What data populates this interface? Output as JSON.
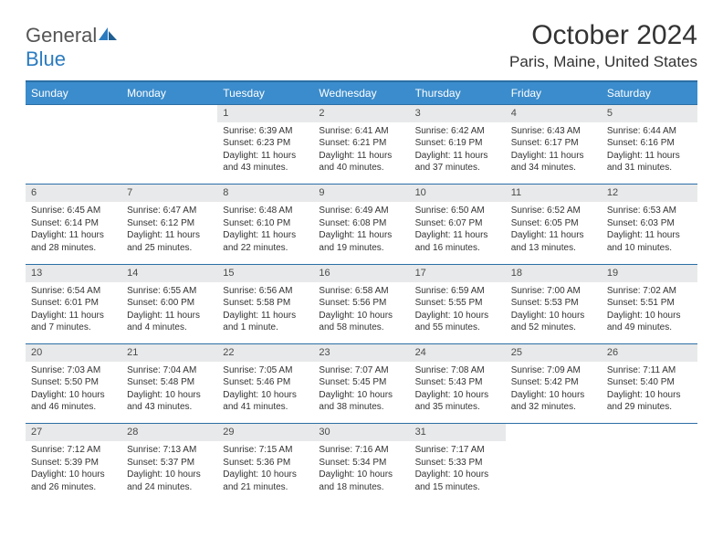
{
  "brand": {
    "text1": "General",
    "text2": "Blue"
  },
  "title": "October 2024",
  "location": "Paris, Maine, United States",
  "colors": {
    "header_bg": "#3b8ccc",
    "header_border": "#2b6fa5",
    "daynum_bg": "#e8e9ea",
    "text": "#333333",
    "brand_blue": "#2b7bbf"
  },
  "day_headers": [
    "Sunday",
    "Monday",
    "Tuesday",
    "Wednesday",
    "Thursday",
    "Friday",
    "Saturday"
  ],
  "weeks": [
    [
      null,
      null,
      {
        "n": "1",
        "sr": "6:39 AM",
        "ss": "6:23 PM",
        "dl": "11 hours and 43 minutes."
      },
      {
        "n": "2",
        "sr": "6:41 AM",
        "ss": "6:21 PM",
        "dl": "11 hours and 40 minutes."
      },
      {
        "n": "3",
        "sr": "6:42 AM",
        "ss": "6:19 PM",
        "dl": "11 hours and 37 minutes."
      },
      {
        "n": "4",
        "sr": "6:43 AM",
        "ss": "6:17 PM",
        "dl": "11 hours and 34 minutes."
      },
      {
        "n": "5",
        "sr": "6:44 AM",
        "ss": "6:16 PM",
        "dl": "11 hours and 31 minutes."
      }
    ],
    [
      {
        "n": "6",
        "sr": "6:45 AM",
        "ss": "6:14 PM",
        "dl": "11 hours and 28 minutes."
      },
      {
        "n": "7",
        "sr": "6:47 AM",
        "ss": "6:12 PM",
        "dl": "11 hours and 25 minutes."
      },
      {
        "n": "8",
        "sr": "6:48 AM",
        "ss": "6:10 PM",
        "dl": "11 hours and 22 minutes."
      },
      {
        "n": "9",
        "sr": "6:49 AM",
        "ss": "6:08 PM",
        "dl": "11 hours and 19 minutes."
      },
      {
        "n": "10",
        "sr": "6:50 AM",
        "ss": "6:07 PM",
        "dl": "11 hours and 16 minutes."
      },
      {
        "n": "11",
        "sr": "6:52 AM",
        "ss": "6:05 PM",
        "dl": "11 hours and 13 minutes."
      },
      {
        "n": "12",
        "sr": "6:53 AM",
        "ss": "6:03 PM",
        "dl": "11 hours and 10 minutes."
      }
    ],
    [
      {
        "n": "13",
        "sr": "6:54 AM",
        "ss": "6:01 PM",
        "dl": "11 hours and 7 minutes."
      },
      {
        "n": "14",
        "sr": "6:55 AM",
        "ss": "6:00 PM",
        "dl": "11 hours and 4 minutes."
      },
      {
        "n": "15",
        "sr": "6:56 AM",
        "ss": "5:58 PM",
        "dl": "11 hours and 1 minute."
      },
      {
        "n": "16",
        "sr": "6:58 AM",
        "ss": "5:56 PM",
        "dl": "10 hours and 58 minutes."
      },
      {
        "n": "17",
        "sr": "6:59 AM",
        "ss": "5:55 PM",
        "dl": "10 hours and 55 minutes."
      },
      {
        "n": "18",
        "sr": "7:00 AM",
        "ss": "5:53 PM",
        "dl": "10 hours and 52 minutes."
      },
      {
        "n": "19",
        "sr": "7:02 AM",
        "ss": "5:51 PM",
        "dl": "10 hours and 49 minutes."
      }
    ],
    [
      {
        "n": "20",
        "sr": "7:03 AM",
        "ss": "5:50 PM",
        "dl": "10 hours and 46 minutes."
      },
      {
        "n": "21",
        "sr": "7:04 AM",
        "ss": "5:48 PM",
        "dl": "10 hours and 43 minutes."
      },
      {
        "n": "22",
        "sr": "7:05 AM",
        "ss": "5:46 PM",
        "dl": "10 hours and 41 minutes."
      },
      {
        "n": "23",
        "sr": "7:07 AM",
        "ss": "5:45 PM",
        "dl": "10 hours and 38 minutes."
      },
      {
        "n": "24",
        "sr": "7:08 AM",
        "ss": "5:43 PM",
        "dl": "10 hours and 35 minutes."
      },
      {
        "n": "25",
        "sr": "7:09 AM",
        "ss": "5:42 PM",
        "dl": "10 hours and 32 minutes."
      },
      {
        "n": "26",
        "sr": "7:11 AM",
        "ss": "5:40 PM",
        "dl": "10 hours and 29 minutes."
      }
    ],
    [
      {
        "n": "27",
        "sr": "7:12 AM",
        "ss": "5:39 PM",
        "dl": "10 hours and 26 minutes."
      },
      {
        "n": "28",
        "sr": "7:13 AM",
        "ss": "5:37 PM",
        "dl": "10 hours and 24 minutes."
      },
      {
        "n": "29",
        "sr": "7:15 AM",
        "ss": "5:36 PM",
        "dl": "10 hours and 21 minutes."
      },
      {
        "n": "30",
        "sr": "7:16 AM",
        "ss": "5:34 PM",
        "dl": "10 hours and 18 minutes."
      },
      {
        "n": "31",
        "sr": "7:17 AM",
        "ss": "5:33 PM",
        "dl": "10 hours and 15 minutes."
      },
      null,
      null
    ]
  ],
  "labels": {
    "sunrise": "Sunrise:",
    "sunset": "Sunset:",
    "daylight": "Daylight:"
  }
}
